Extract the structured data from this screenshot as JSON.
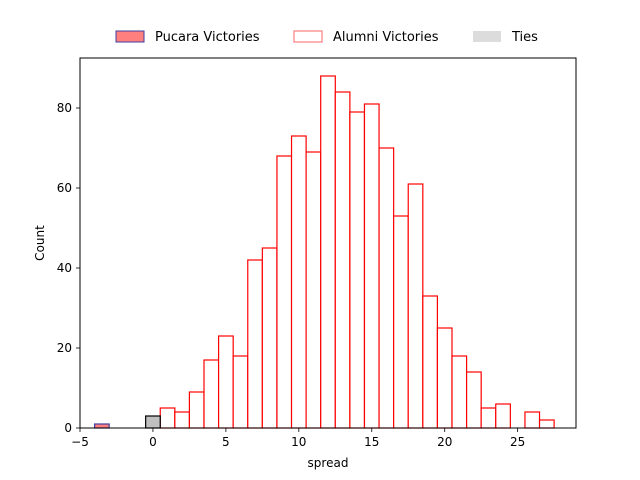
{
  "chart_data": {
    "type": "bar",
    "subtype": "histogram",
    "title": "",
    "xlabel": "spread",
    "ylabel": "Count",
    "xlim": [
      -5,
      29
    ],
    "ylim": [
      0,
      92.5
    ],
    "xticks": [
      -5,
      0,
      5,
      10,
      15,
      20,
      25
    ],
    "yticks": [
      0,
      20,
      40,
      60,
      80
    ],
    "grid": false,
    "legend": {
      "placement": "top-center-outside",
      "columns": 3
    },
    "bin_width": 1,
    "series": [
      {
        "name": "Pucara Victories",
        "style": "filled",
        "face_color": "#ff7f7f",
        "edge_color": "#3f3f9f",
        "bins": [
          {
            "x_start": -4,
            "x_end": -3,
            "count": 1
          }
        ]
      },
      {
        "name": "Alumni Victories",
        "style": "outline",
        "face_color": "#ffffff",
        "edge_color": "#ff0000",
        "bins": [
          {
            "x_start": 0.5,
            "x_end": 1.5,
            "count": 5
          },
          {
            "x_start": 1.5,
            "x_end": 2.5,
            "count": 4
          },
          {
            "x_start": 2.5,
            "x_end": 3.5,
            "count": 9
          },
          {
            "x_start": 3.5,
            "x_end": 4.5,
            "count": 17
          },
          {
            "x_start": 4.5,
            "x_end": 5.5,
            "count": 23
          },
          {
            "x_start": 5.5,
            "x_end": 6.5,
            "count": 18
          },
          {
            "x_start": 6.5,
            "x_end": 7.5,
            "count": 42
          },
          {
            "x_start": 7.5,
            "x_end": 8.5,
            "count": 45
          },
          {
            "x_start": 8.5,
            "x_end": 9.5,
            "count": 68
          },
          {
            "x_start": 9.5,
            "x_end": 10.5,
            "count": 73
          },
          {
            "x_start": 10.5,
            "x_end": 11.5,
            "count": 69
          },
          {
            "x_start": 11.5,
            "x_end": 12.5,
            "count": 88
          },
          {
            "x_start": 12.5,
            "x_end": 13.5,
            "count": 84
          },
          {
            "x_start": 13.5,
            "x_end": 14.5,
            "count": 79
          },
          {
            "x_start": 14.5,
            "x_end": 15.5,
            "count": 81
          },
          {
            "x_start": 15.5,
            "x_end": 16.5,
            "count": 70
          },
          {
            "x_start": 16.5,
            "x_end": 17.5,
            "count": 53
          },
          {
            "x_start": 17.5,
            "x_end": 18.5,
            "count": 61
          },
          {
            "x_start": 18.5,
            "x_end": 19.5,
            "count": 33
          },
          {
            "x_start": 19.5,
            "x_end": 20.5,
            "count": 25
          },
          {
            "x_start": 20.5,
            "x_end": 21.5,
            "count": 18
          },
          {
            "x_start": 21.5,
            "x_end": 22.5,
            "count": 14
          },
          {
            "x_start": 22.5,
            "x_end": 23.5,
            "count": 5
          },
          {
            "x_start": 23.5,
            "x_end": 24.5,
            "count": 6
          },
          {
            "x_start": 25.5,
            "x_end": 26.5,
            "count": 4
          },
          {
            "x_start": 26.5,
            "x_end": 27.5,
            "count": 2
          }
        ]
      },
      {
        "name": "Ties",
        "style": "filled",
        "face_color": "#c0c0c0",
        "edge_color": "#000000",
        "legend_color": "#dcdcdc",
        "bins": [
          {
            "x_start": -0.5,
            "x_end": 0.5,
            "count": 3
          }
        ]
      }
    ]
  }
}
